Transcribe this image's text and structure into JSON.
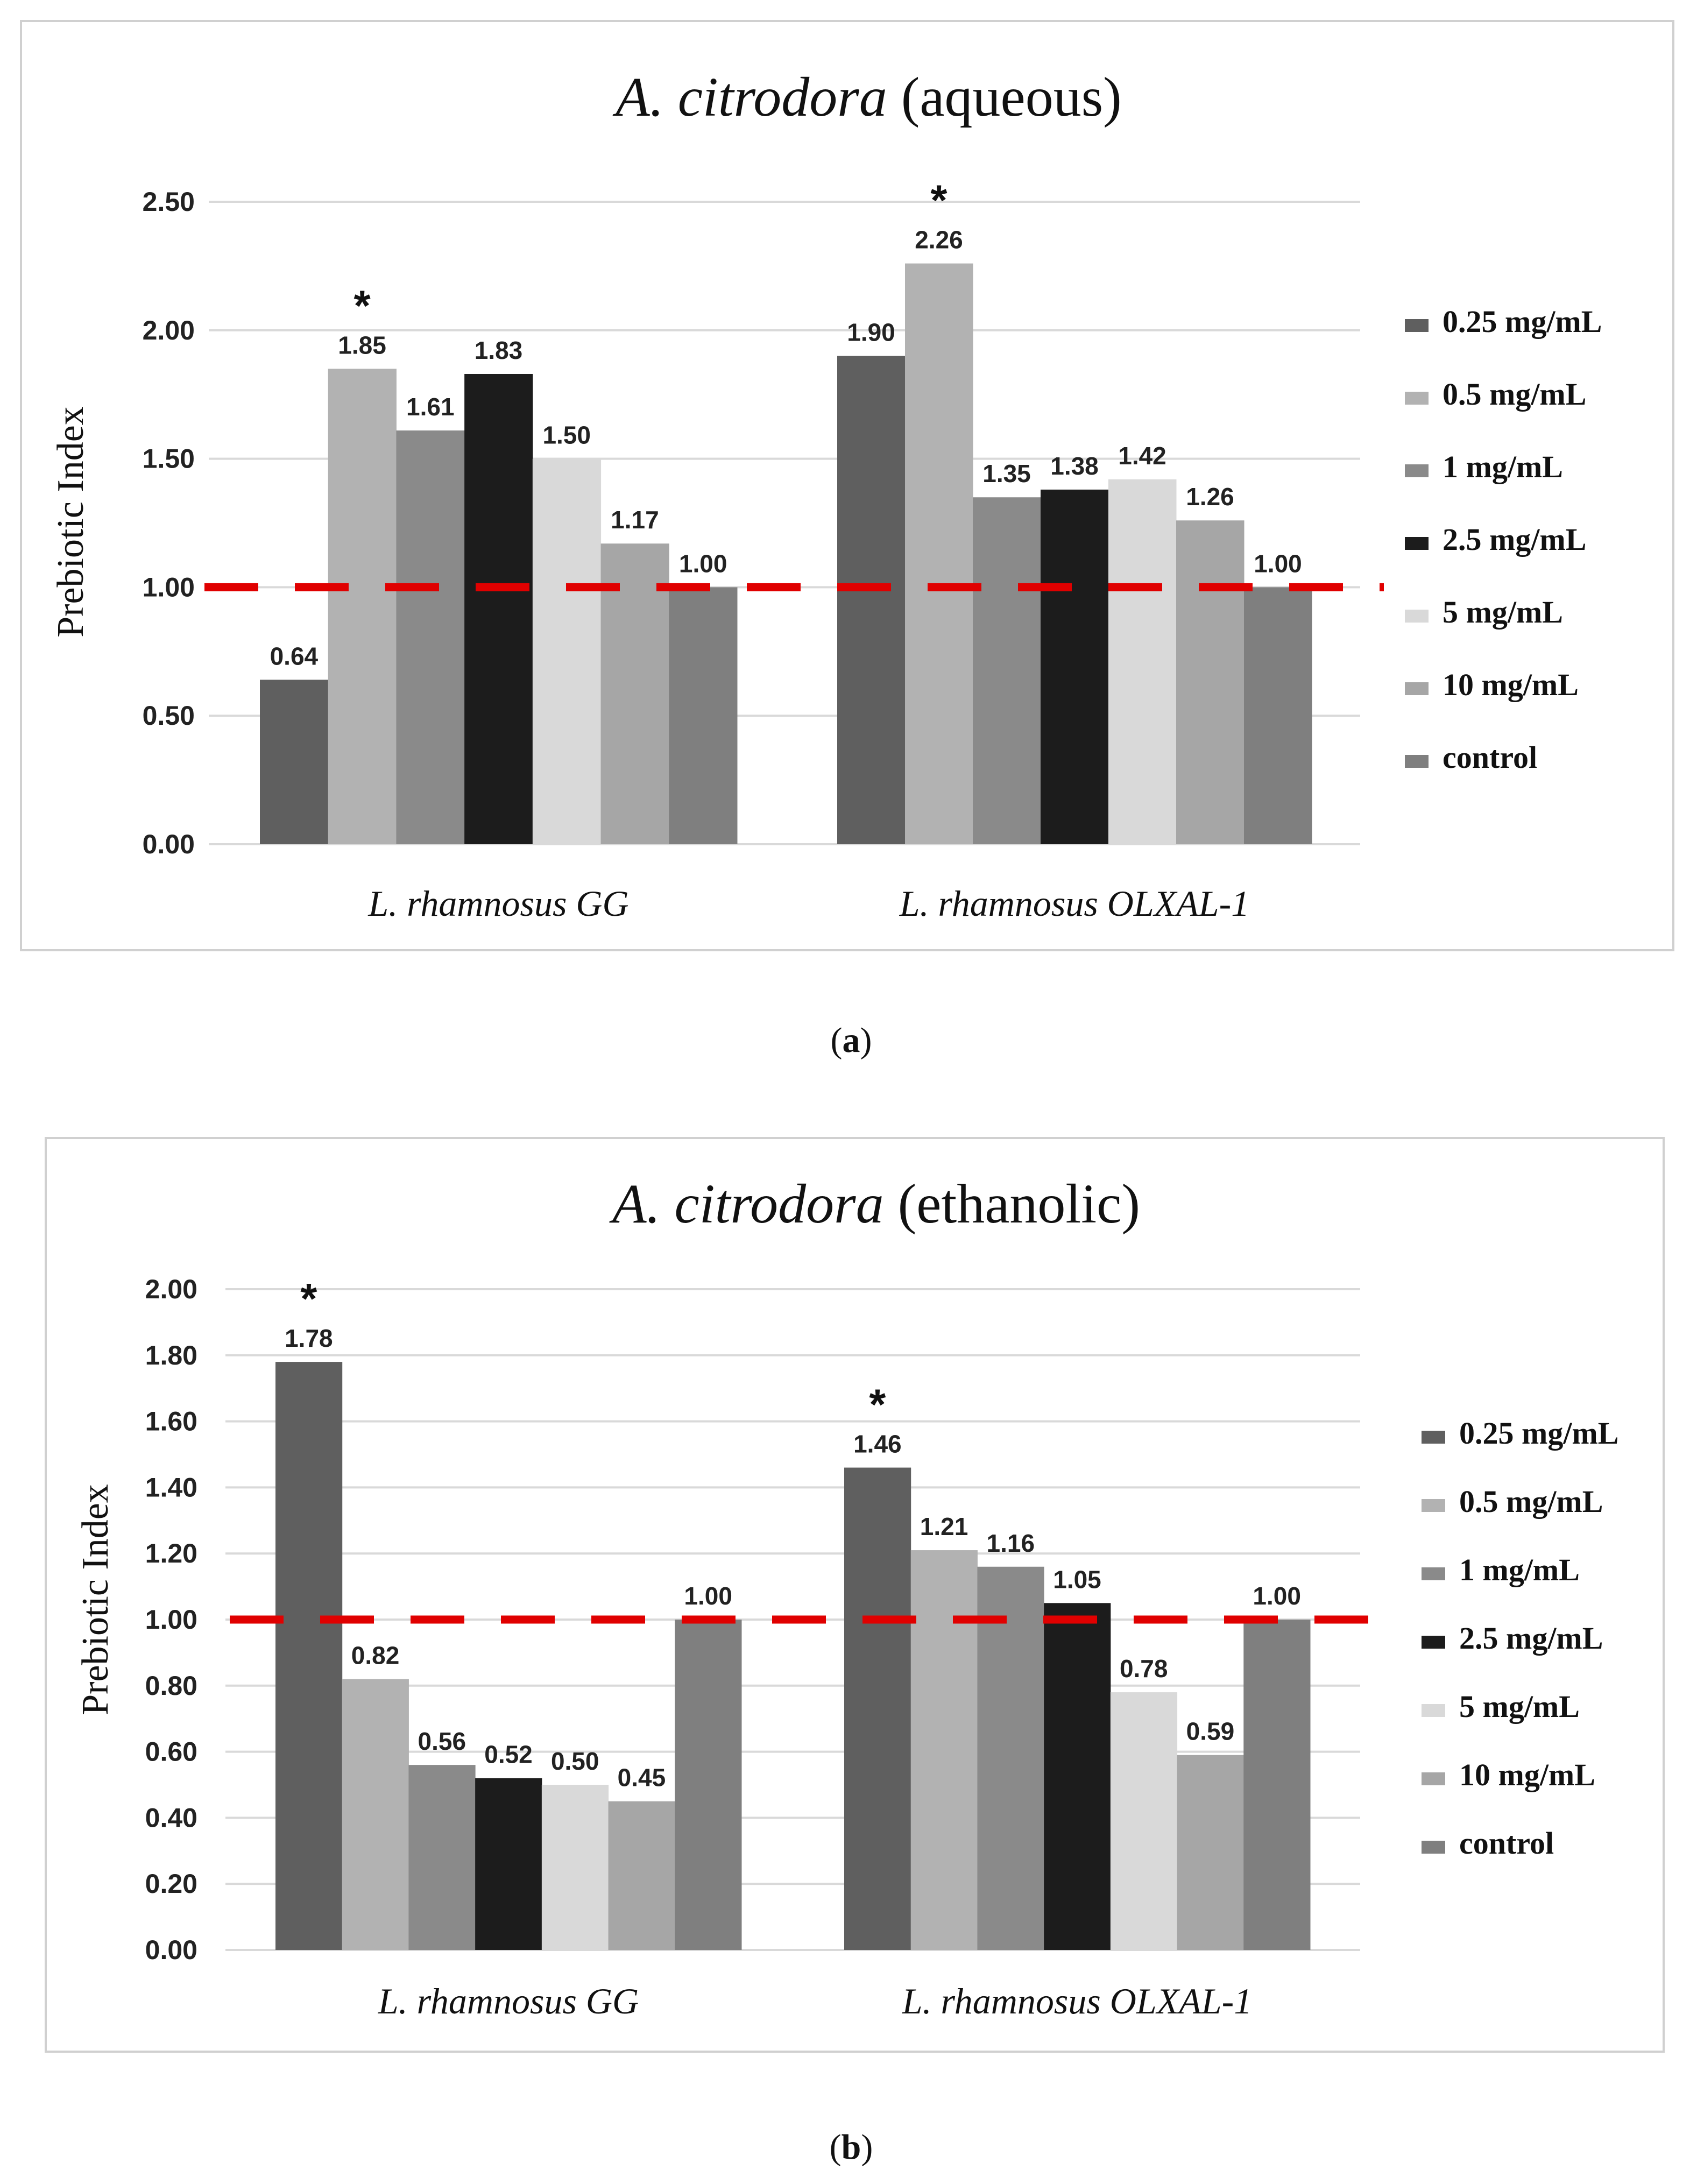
{
  "colors": {
    "0.25 mg/mL": "#5f5f5f",
    "0.5 mg/mL": "#b2b2b2",
    "1 mg/mL": "#8a8a8a",
    "2.5 mg/mL": "#1c1c1c",
    "5 mg/mL": "#d9d9d9",
    "10 mg/mL": "#a6a6a6",
    "control": "#7f7f7f",
    "threshold": "#e00000"
  },
  "chart_data": [
    {
      "type": "bar",
      "title_italic": "A. citrodora",
      "title_rest": " (aqueous)",
      "caption_letter": "a",
      "ylabel": "Prebiotic Index",
      "xlabel": "",
      "ylim": [
        0,
        2.5
      ],
      "yticks": [
        "0.00",
        "0.50",
        "1.00",
        "1.50",
        "2.00",
        "2.50"
      ],
      "grid": true,
      "legend_position": "right",
      "categories": [
        "L. rhamnosus GG",
        "L. rhamnosus OLXAL-1"
      ],
      "series": [
        {
          "name": "0.25 mg/mL",
          "values": [
            0.64,
            1.9
          ]
        },
        {
          "name": "0.5 mg/mL",
          "values": [
            1.85,
            2.26
          ]
        },
        {
          "name": "1 mg/mL",
          "values": [
            1.61,
            1.35
          ]
        },
        {
          "name": "2.5 mg/mL",
          "values": [
            1.83,
            1.38
          ]
        },
        {
          "name": "5 mg/mL",
          "values": [
            1.5,
            1.42
          ]
        },
        {
          "name": "10 mg/mL",
          "values": [
            1.17,
            1.26
          ]
        },
        {
          "name": "control",
          "values": [
            1.0,
            1.0
          ]
        }
      ],
      "significance": [
        {
          "category": 0,
          "series": 1,
          "mark": "*"
        },
        {
          "category": 1,
          "series": 1,
          "mark": "*"
        }
      ],
      "reference_line": 1.0
    },
    {
      "type": "bar",
      "title_italic": "A. citrodora",
      "title_rest": " (ethanolic)",
      "caption_letter": "b",
      "ylabel": "Prebiotic Index",
      "xlabel": "",
      "ylim": [
        0,
        2.0
      ],
      "yticks": [
        "0.00",
        "0.20",
        "0.40",
        "0.60",
        "0.80",
        "1.00",
        "1.20",
        "1.40",
        "1.60",
        "1.80",
        "2.00"
      ],
      "grid": true,
      "legend_position": "right",
      "categories": [
        "L. rhamnosus GG",
        "L. rhamnosus OLXAL-1"
      ],
      "series": [
        {
          "name": "0.25 mg/mL",
          "values": [
            1.78,
            1.46
          ]
        },
        {
          "name": "0.5 mg/mL",
          "values": [
            0.82,
            1.21
          ]
        },
        {
          "name": "1 mg/mL",
          "values": [
            0.56,
            1.16
          ]
        },
        {
          "name": "2.5 mg/mL",
          "values": [
            0.52,
            1.05
          ]
        },
        {
          "name": "5 mg/mL",
          "values": [
            0.5,
            0.78
          ]
        },
        {
          "name": "10 mg/mL",
          "values": [
            0.45,
            0.59
          ]
        },
        {
          "name": "control",
          "values": [
            1.0,
            1.0
          ]
        }
      ],
      "significance": [
        {
          "category": 0,
          "series": 0,
          "mark": "*"
        },
        {
          "category": 1,
          "series": 0,
          "mark": "*"
        }
      ],
      "reference_line": 1.0
    }
  ]
}
